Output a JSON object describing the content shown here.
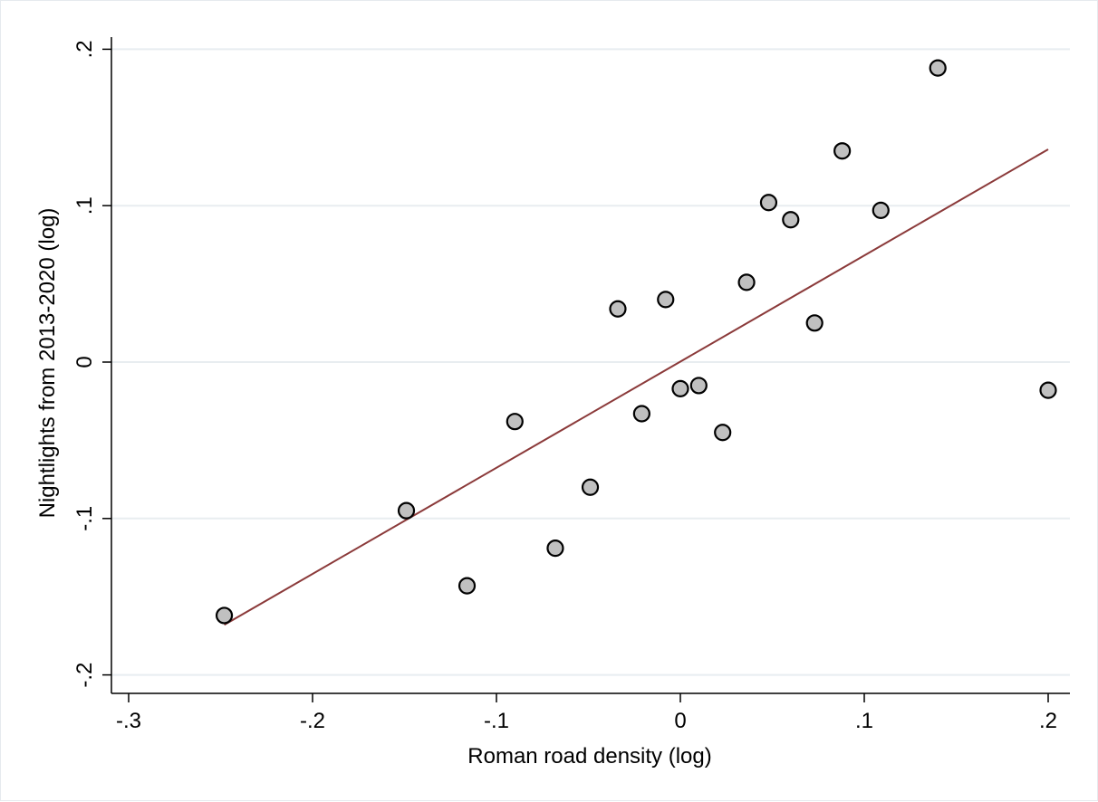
{
  "chart_data": {
    "type": "scatter",
    "xlabel": "Roman road density (log)",
    "ylabel": "Nightlights from 2013-2020 (log)",
    "xlim": [
      -0.31,
      0.21
    ],
    "ylim": [
      -0.21,
      0.21
    ],
    "x_ticks": [
      -0.3,
      -0.2,
      -0.1,
      0,
      0.1,
      0.2
    ],
    "x_tick_labels": [
      "-.3",
      "-.2",
      "-.1",
      "0",
      ".1",
      ".2"
    ],
    "y_ticks": [
      -0.2,
      -0.1,
      0,
      0.1,
      0.2
    ],
    "y_tick_labels": [
      "-.2",
      "-.1",
      "0",
      ".1",
      ".2"
    ],
    "grid": "horizontal",
    "series": [
      {
        "kind": "points",
        "color": "#c0c0c0",
        "x": [
          -0.248,
          -0.149,
          -0.116,
          -0.09,
          -0.068,
          -0.049,
          -0.034,
          -0.021,
          -0.008,
          0.0,
          0.01,
          0.023,
          0.036,
          0.048,
          0.06,
          0.073,
          0.088,
          0.109,
          0.14,
          0.2
        ],
        "y": [
          -0.162,
          -0.095,
          -0.143,
          -0.038,
          -0.119,
          -0.08,
          0.034,
          -0.033,
          0.04,
          -0.017,
          -0.015,
          -0.045,
          0.051,
          0.102,
          0.091,
          0.025,
          0.135,
          0.097,
          0.188,
          -0.018
        ]
      },
      {
        "kind": "fit-line",
        "color": "#8b3a3a",
        "x": [
          -0.248,
          0.2
        ],
        "y": [
          -0.168,
          0.136
        ]
      }
    ]
  }
}
